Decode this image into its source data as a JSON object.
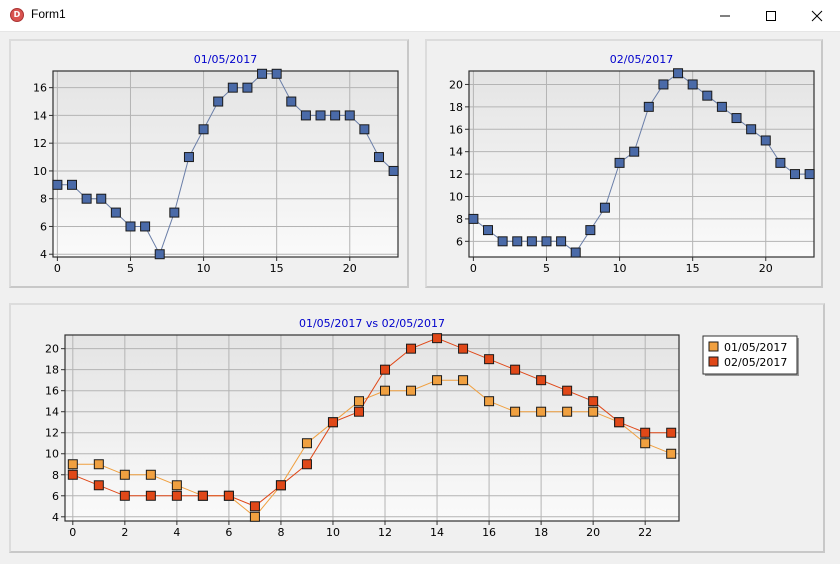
{
  "window": {
    "title": "Form1"
  },
  "icons": {
    "app": "app-icon",
    "minimize": "minimize-icon",
    "maximize": "maximize-icon",
    "close": "close-icon"
  },
  "colors": {
    "series1": "#f0a040",
    "series2": "#e04818",
    "series_single": "#4a6aa8",
    "title": "#0000cc"
  },
  "chart_data": [
    {
      "type": "line",
      "title": "01/05/2017",
      "x": [
        0,
        1,
        2,
        3,
        4,
        5,
        6,
        7,
        8,
        9,
        10,
        11,
        12,
        13,
        14,
        15,
        16,
        17,
        18,
        19,
        20,
        21,
        22,
        23
      ],
      "series": [
        {
          "values": [
            9,
            9,
            8,
            8,
            7,
            6,
            6,
            4,
            7,
            11,
            13,
            15,
            16,
            16,
            17,
            17,
            15,
            14,
            14,
            14,
            14,
            13,
            11,
            10
          ]
        }
      ],
      "xlim": [
        -0.3,
        23.3
      ],
      "ylim": [
        3.8,
        17.2
      ],
      "xticks": [
        0,
        5,
        10,
        15,
        20
      ],
      "yticks": [
        4,
        6,
        8,
        10,
        12,
        14,
        16
      ],
      "grid": true
    },
    {
      "type": "line",
      "title": "02/05/2017",
      "x": [
        0,
        1,
        2,
        3,
        4,
        5,
        6,
        7,
        8,
        9,
        10,
        11,
        12,
        13,
        14,
        15,
        16,
        17,
        18,
        19,
        20,
        21,
        22,
        23
      ],
      "series": [
        {
          "values": [
            8,
            7,
            6,
            6,
            6,
            6,
            6,
            5,
            7,
            9,
            13,
            14,
            18,
            20,
            21,
            20,
            19,
            18,
            17,
            16,
            15,
            13,
            12,
            12
          ]
        }
      ],
      "xlim": [
        -0.3,
        23.3
      ],
      "ylim": [
        4.6,
        21.2
      ],
      "xticks": [
        0,
        5,
        10,
        15,
        20
      ],
      "yticks": [
        6,
        8,
        10,
        12,
        14,
        16,
        18,
        20
      ],
      "grid": true
    },
    {
      "type": "line",
      "title": "01/05/2017 vs 02/05/2017",
      "x": [
        0,
        1,
        2,
        3,
        4,
        5,
        6,
        7,
        8,
        9,
        10,
        11,
        12,
        13,
        14,
        15,
        16,
        17,
        18,
        19,
        20,
        21,
        22,
        23
      ],
      "series": [
        {
          "name": "01/05/2017",
          "values": [
            9,
            9,
            8,
            8,
            7,
            6,
            6,
            4,
            7,
            11,
            13,
            15,
            16,
            16,
            17,
            17,
            15,
            14,
            14,
            14,
            14,
            13,
            11,
            10
          ]
        },
        {
          "name": "02/05/2017",
          "values": [
            8,
            7,
            6,
            6,
            6,
            6,
            6,
            5,
            7,
            9,
            13,
            14,
            18,
            20,
            21,
            20,
            19,
            18,
            17,
            16,
            15,
            13,
            12,
            12
          ]
        }
      ],
      "xlim": [
        -0.3,
        23.3
      ],
      "ylim": [
        3.6,
        21.3
      ],
      "xticks": [
        0,
        2,
        4,
        6,
        8,
        10,
        12,
        14,
        16,
        18,
        20,
        22
      ],
      "yticks": [
        4,
        6,
        8,
        10,
        12,
        14,
        16,
        18,
        20
      ],
      "grid": true,
      "legend": "top-right"
    }
  ]
}
